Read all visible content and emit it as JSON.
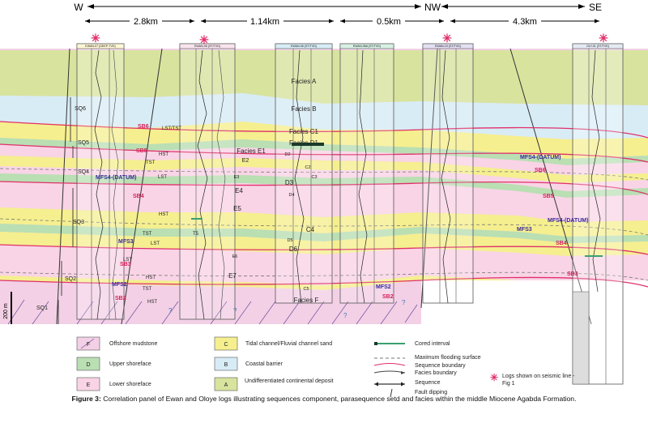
{
  "directions": {
    "w": "W",
    "nw": "NW",
    "se": "SE"
  },
  "distances": [
    "2.8km",
    "1.14km",
    "0.5km",
    "4.3km"
  ],
  "wells": [
    "EWAN-07 (DEEP-TVD)",
    "EWAN-05 (ST/TVD)",
    "EWAN-06 (ST/TVD)",
    "EWAN-06A (ST/TVD)",
    "EWAN-10 (ST/TVD)",
    "OLY-01 (ST/TVD)"
  ],
  "log_header": "GRTVD  0  150  ILM  0.2  2000",
  "facies_labels": {
    "a": "Facies A",
    "b": "Facies B",
    "c1": "Facies C1",
    "d1": "Facies D1",
    "e1": "Facies E1",
    "d2": "D2",
    "e2": "E2",
    "c2": "C2",
    "e3": "E3",
    "c3": "C3",
    "d3": "D3",
    "d4": "D4",
    "e4": "E4",
    "e5": "E5",
    "c4": "C4",
    "d5": "D5",
    "d6": "D6",
    "e6": "E6",
    "e7": "E7",
    "c5": "C5",
    "f": "Facies F"
  },
  "systems_tracts": {
    "lst_tst_top": "LST/TST",
    "hst1": "HST",
    "tst1": "TST",
    "lst1": "LST",
    "hst2": "HST",
    "tst2": "TST",
    "lst2": "LST",
    "lst3": "LST",
    "hst3": "HST",
    "tst3": "TST",
    "hst4": "HST",
    "t5": "T5"
  },
  "sequences": [
    "SQ6",
    "SQ5",
    "SQ4",
    "SQ3",
    "SQ2",
    "SQ1"
  ],
  "sequence_boundaries": {
    "sb6": "SB6",
    "sb5": "SB5",
    "sb4": "SB4",
    "sb3": "SB3",
    "sb2": "SB2"
  },
  "mfs": {
    "mfs4": "MFS4-(DATUM)",
    "mfs3": "MFS3",
    "mfs2": "MFS2"
  },
  "scale_bar": "200 m",
  "question_mark": "?",
  "legend": {
    "facies": [
      {
        "code": "F",
        "label": "Offshore mudstone",
        "color": "#f3d0e6"
      },
      {
        "code": "D",
        "label": "Upper shoreface",
        "color": "#b9dfb3"
      },
      {
        "code": "E",
        "label": "Lower shoreface",
        "color": "#f9d4e6"
      },
      {
        "code": "C",
        "label": "Tidal channel/Fluvial channel sand",
        "color": "#f5ef8f"
      },
      {
        "code": "B",
        "label": "Coastal barrier",
        "color": "#d8ecf6"
      },
      {
        "code": "A",
        "label": "Undifferentiated continental deposit",
        "color": "#d8e39e"
      }
    ],
    "lines": {
      "cored": "Cored interval",
      "mfs": "Maximum flooding surface",
      "sb": "Sequence boundary",
      "fb": "Facies boundary",
      "seq": "Sequence",
      "fault": "Fault dipping",
      "seismic": "Logs shown on seismic line - Fig 1"
    }
  },
  "caption": {
    "label": "Figure 3:",
    "text": " Correlation panel of Ewan and Oloye logs illustrating sequences component, parasequence setd and facies within the middle Miocene Agabda Formation."
  },
  "colors": {
    "continental": "#d8e39e",
    "barrier": "#d8ecf6",
    "channel": "#f5ef8f",
    "upper_shoreface": "#b9dfb3",
    "lower_shoreface": "#f9d4e6",
    "offshore": "#f3d0e6",
    "sb_line": "#e0306a",
    "mfs_label": "#3a2a9a",
    "sb_label": "#d6205a"
  }
}
